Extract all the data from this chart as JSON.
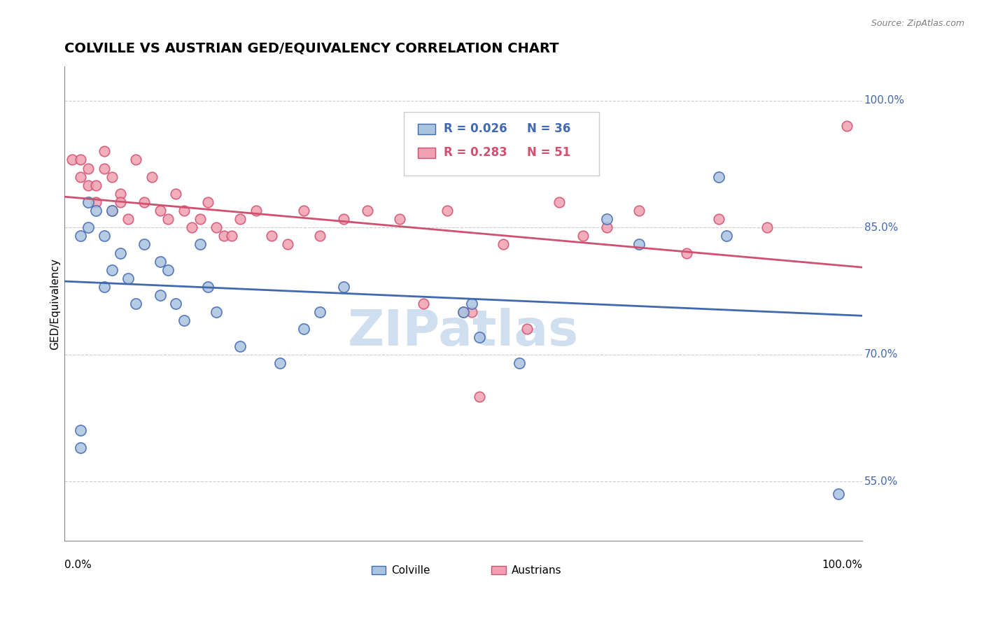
{
  "title": "COLVILLE VS AUSTRIAN GED/EQUIVALENCY CORRELATION CHART",
  "source_text": "Source: ZipAtlas.com",
  "ylabel": "GED/Equivalency",
  "ytick_labels": [
    "55.0%",
    "70.0%",
    "85.0%",
    "100.0%"
  ],
  "ytick_values": [
    0.55,
    0.7,
    0.85,
    1.0
  ],
  "xlim": [
    0.0,
    1.0
  ],
  "ylim": [
    0.48,
    1.04
  ],
  "colville_R": 0.026,
  "colville_N": 36,
  "austrian_R": 0.283,
  "austrian_N": 51,
  "colville_color": "#a8c4e0",
  "austrian_color": "#f0a0b0",
  "colville_line_color": "#4169b0",
  "austrian_line_color": "#d05070",
  "watermark_color": "#d0dff0",
  "grid_color": "#cccccc",
  "colville_x": [
    0.02,
    0.02,
    0.02,
    0.03,
    0.03,
    0.04,
    0.05,
    0.05,
    0.06,
    0.06,
    0.07,
    0.08,
    0.09,
    0.1,
    0.12,
    0.12,
    0.13,
    0.14,
    0.15,
    0.17,
    0.18,
    0.19,
    0.22,
    0.27,
    0.3,
    0.32,
    0.35,
    0.5,
    0.51,
    0.52,
    0.57,
    0.68,
    0.72,
    0.82,
    0.83,
    0.97
  ],
  "colville_y": [
    0.61,
    0.59,
    0.84,
    0.88,
    0.85,
    0.87,
    0.78,
    0.84,
    0.8,
    0.87,
    0.82,
    0.79,
    0.76,
    0.83,
    0.81,
    0.77,
    0.8,
    0.76,
    0.74,
    0.83,
    0.78,
    0.75,
    0.71,
    0.69,
    0.73,
    0.75,
    0.78,
    0.75,
    0.76,
    0.72,
    0.69,
    0.86,
    0.83,
    0.91,
    0.84,
    0.535
  ],
  "austrian_x": [
    0.01,
    0.02,
    0.02,
    0.03,
    0.03,
    0.04,
    0.04,
    0.05,
    0.05,
    0.06,
    0.06,
    0.07,
    0.07,
    0.08,
    0.09,
    0.1,
    0.11,
    0.12,
    0.13,
    0.14,
    0.15,
    0.16,
    0.17,
    0.18,
    0.19,
    0.2,
    0.21,
    0.22,
    0.24,
    0.26,
    0.28,
    0.3,
    0.32,
    0.35,
    0.38,
    0.42,
    0.45,
    0.48,
    0.5,
    0.51,
    0.52,
    0.55,
    0.58,
    0.62,
    0.65,
    0.68,
    0.72,
    0.78,
    0.82,
    0.88,
    0.98
  ],
  "austrian_y": [
    0.93,
    0.93,
    0.91,
    0.92,
    0.9,
    0.88,
    0.9,
    0.92,
    0.94,
    0.91,
    0.87,
    0.89,
    0.88,
    0.86,
    0.93,
    0.88,
    0.91,
    0.87,
    0.86,
    0.89,
    0.87,
    0.85,
    0.86,
    0.88,
    0.85,
    0.84,
    0.84,
    0.86,
    0.87,
    0.84,
    0.83,
    0.87,
    0.84,
    0.86,
    0.87,
    0.86,
    0.76,
    0.87,
    0.75,
    0.75,
    0.65,
    0.83,
    0.73,
    0.88,
    0.84,
    0.85,
    0.87,
    0.82,
    0.86,
    0.85,
    0.97
  ],
  "colville_size": 120,
  "austrian_size": 110
}
